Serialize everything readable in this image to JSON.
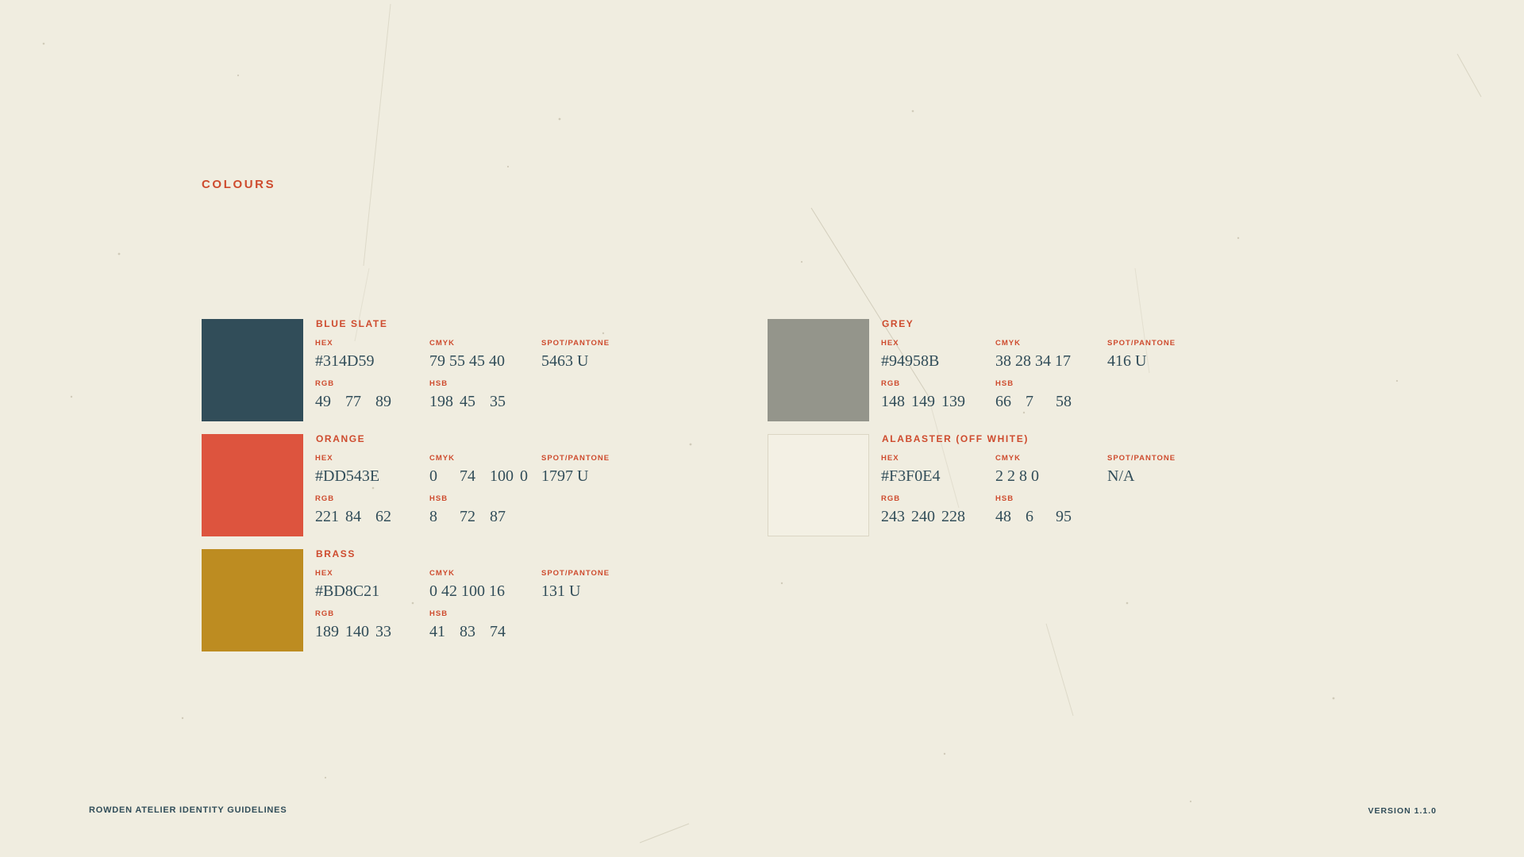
{
  "page": {
    "title": "COLOURS",
    "background": "#F0EDE0",
    "accent_color": "#CE4B2E",
    "ink_color": "#314D59"
  },
  "labels": {
    "hex": "HEX",
    "cmyk": "CMYK",
    "spot": "SPOT/PANTONE",
    "rgb": "RGB",
    "hsb": "HSB"
  },
  "colors": [
    {
      "name": "BLUE SLATE",
      "swatch": "#314D59",
      "hex": "#314D59",
      "cmyk": "79 55 45 40",
      "spot": "5463 U",
      "rgb": [
        "49",
        "77",
        "89"
      ],
      "hsb": [
        "198",
        "45",
        "35"
      ]
    },
    {
      "name": "ORANGE",
      "swatch": "#DD543E",
      "hex": "#DD543E",
      "cmyk": [
        "0",
        "74",
        "100",
        "0"
      ],
      "spot": "1797 U",
      "rgb": [
        "221",
        "84",
        "62"
      ],
      "hsb": [
        "8",
        "72",
        "87"
      ]
    },
    {
      "name": "BRASS",
      "swatch": "#BD8C21",
      "hex": "#BD8C21",
      "cmyk": "0 42 100 16",
      "spot": "131 U",
      "rgb": [
        "189",
        "140",
        "33"
      ],
      "hsb": [
        "41",
        "83",
        "74"
      ]
    },
    {
      "name": "GREY",
      "swatch": "#94958B",
      "hex": "#94958B",
      "cmyk": "38 28 34 17",
      "spot": "416 U",
      "rgb": [
        "148",
        "149",
        "139"
      ],
      "hsb": [
        "66",
        "7",
        "58"
      ]
    },
    {
      "name": "ALABASTER (OFF WHITE)",
      "swatch": "#F3F0E4",
      "hex": "#F3F0E4",
      "cmyk": "2 2 8 0",
      "spot": "N/A",
      "rgb": [
        "243",
        "240",
        "228"
      ],
      "hsb": [
        "48",
        "6",
        "95"
      ]
    }
  ],
  "footer": {
    "left": "ROWDEN ATELIER IDENTITY GUIDELINES",
    "right": "VERSION 1.1.0"
  }
}
